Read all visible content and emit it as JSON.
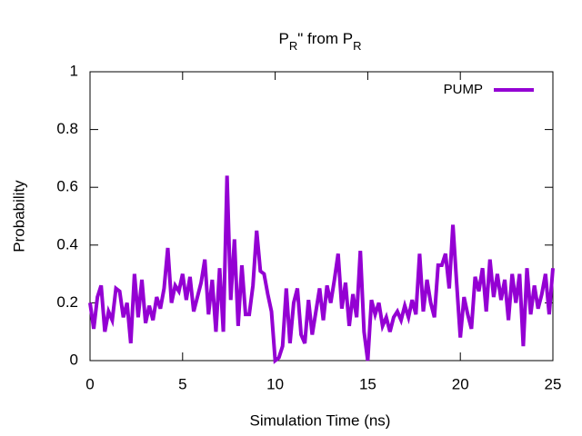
{
  "chart_data": {
    "type": "line",
    "title": [
      {
        "text": "P"
      },
      {
        "text": "R",
        "sub": true
      },
      {
        "text": "\" from P"
      },
      {
        "text": "R",
        "sub": true
      }
    ],
    "xlabel": "Simulation Time (ns)",
    "ylabel": "Probability",
    "xlim": [
      0,
      25
    ],
    "xticks": [
      0,
      5,
      10,
      15,
      20,
      25
    ],
    "ylim": [
      0,
      1
    ],
    "yticks": [
      0,
      0.2,
      0.4,
      0.6,
      0.8,
      1
    ],
    "legend": "top-right",
    "x": [
      0,
      0.2,
      0.4,
      0.6,
      0.8,
      1,
      1.2,
      1.4,
      1.6,
      1.8,
      2,
      2.2,
      2.4,
      2.6,
      2.8,
      3,
      3.2,
      3.4,
      3.6,
      3.8,
      4,
      4.2,
      4.4,
      4.6,
      4.8,
      5,
      5.2,
      5.4,
      5.6,
      5.8,
      6,
      6.2,
      6.4,
      6.6,
      6.8,
      7,
      7.2,
      7.4,
      7.6,
      7.8,
      8,
      8.2,
      8.4,
      8.6,
      8.8,
      9,
      9.2,
      9.4,
      9.6,
      9.8,
      10,
      10.2,
      10.4,
      10.6,
      10.8,
      11,
      11.2,
      11.4,
      11.6,
      11.8,
      12,
      12.2,
      12.4,
      12.6,
      12.8,
      13,
      13.2,
      13.4,
      13.6,
      13.8,
      14,
      14.2,
      14.4,
      14.6,
      14.8,
      15,
      15.2,
      15.4,
      15.6,
      15.8,
      16,
      16.2,
      16.4,
      16.6,
      16.8,
      17,
      17.2,
      17.4,
      17.6,
      17.8,
      18,
      18.2,
      18.4,
      18.6,
      18.8,
      19,
      19.2,
      19.4,
      19.6,
      19.8,
      20,
      20.2,
      20.4,
      20.6,
      20.8,
      21,
      21.2,
      21.4,
      21.6,
      21.8,
      22,
      22.2,
      22.4,
      22.6,
      22.8,
      23,
      23.2,
      23.4,
      23.6,
      23.8,
      24,
      24.2,
      24.4,
      24.6,
      24.8,
      25
    ],
    "series": [
      {
        "name": "PUMP",
        "color": "#9400d3",
        "values": [
          0.2,
          0.11,
          0.22,
          0.26,
          0.1,
          0.17,
          0.14,
          0.25,
          0.24,
          0.15,
          0.2,
          0.06,
          0.3,
          0.15,
          0.28,
          0.13,
          0.19,
          0.14,
          0.22,
          0.18,
          0.25,
          0.39,
          0.2,
          0.26,
          0.24,
          0.3,
          0.21,
          0.29,
          0.17,
          0.22,
          0.27,
          0.35,
          0.16,
          0.28,
          0.1,
          0.32,
          0.1,
          0.64,
          0.21,
          0.42,
          0.12,
          0.33,
          0.16,
          0.16,
          0.26,
          0.45,
          0.31,
          0.3,
          0.23,
          0.17,
          0.0,
          0.01,
          0.05,
          0.25,
          0.06,
          0.2,
          0.25,
          0.09,
          0.06,
          0.21,
          0.09,
          0.17,
          0.25,
          0.14,
          0.26,
          0.2,
          0.28,
          0.37,
          0.18,
          0.27,
          0.12,
          0.23,
          0.15,
          0.38,
          0.1,
          0.0,
          0.21,
          0.16,
          0.2,
          0.12,
          0.15,
          0.1,
          0.15,
          0.17,
          0.14,
          0.19,
          0.15,
          0.21,
          0.16,
          0.37,
          0.17,
          0.28,
          0.2,
          0.15,
          0.33,
          0.33,
          0.37,
          0.25,
          0.47,
          0.27,
          0.08,
          0.22,
          0.16,
          0.11,
          0.29,
          0.24,
          0.32,
          0.17,
          0.35,
          0.22,
          0.3,
          0.21,
          0.28,
          0.14,
          0.3,
          0.2,
          0.3,
          0.05,
          0.32,
          0.16,
          0.26,
          0.18,
          0.23,
          0.3,
          0.16,
          0.32
        ]
      }
    ]
  }
}
